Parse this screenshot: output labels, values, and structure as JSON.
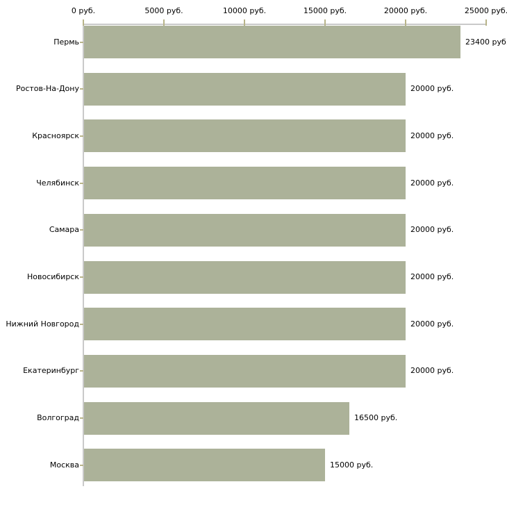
{
  "chart_data": {
    "type": "bar",
    "orientation": "horizontal",
    "title": "",
    "xlabel": "",
    "ylabel": "",
    "unit": "руб.",
    "xlim": [
      0,
      25000
    ],
    "grid": false,
    "legend": false,
    "x_tick_values": [
      0,
      5000,
      10000,
      15000,
      20000,
      25000
    ],
    "x_tick_labels": [
      "0 руб.",
      "5000 руб.",
      "10000 руб.",
      "15000 руб.",
      "20000 руб.",
      "25000 руб."
    ],
    "categories": [
      "Пермь",
      "Ростов-На-Дону",
      "Красноярск",
      "Челябинск",
      "Самара",
      "Новосибирск",
      "Нижний Новгород",
      "Екатеринбург",
      "Волгоград",
      "Москва"
    ],
    "values": [
      23400,
      20000,
      20000,
      20000,
      20000,
      20000,
      20000,
      20000,
      16500,
      15000
    ],
    "value_labels": [
      "23400 руб.",
      "20000 руб.",
      "20000 руб.",
      "20000 руб.",
      "20000 руб.",
      "20000 руб.",
      "20000 руб.",
      "20000 руб.",
      "16500 руб.",
      "15000 руб."
    ],
    "colors": {
      "bar": "#acb299",
      "axis_line": "#c9c9c9",
      "tick": "#b8b489",
      "text": "#000000",
      "background": "#ffffff"
    }
  }
}
